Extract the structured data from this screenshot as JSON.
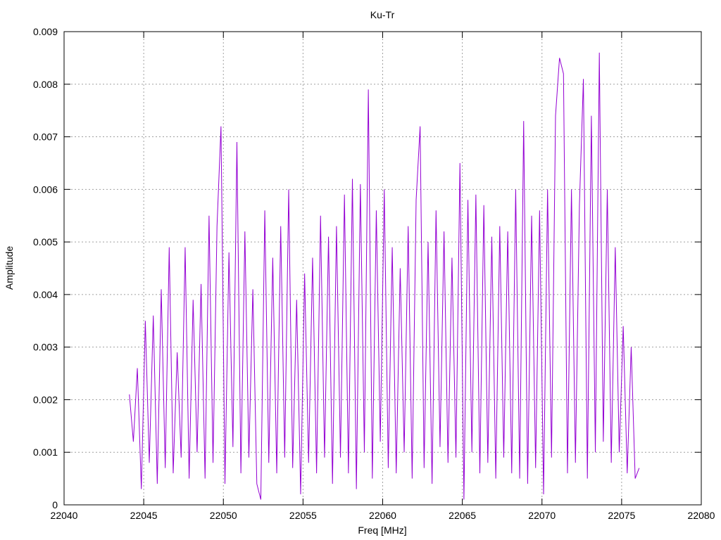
{
  "chart_data": {
    "type": "line",
    "title": "Ku-Tr",
    "x_label": "Freq [MHz]",
    "y_label": "Amplitude",
    "x": [
      22044.1,
      22044.35,
      22044.6,
      22044.85,
      22045.1,
      22045.35,
      22045.6,
      22045.85,
      22046.1,
      22046.35,
      22046.6,
      22046.85,
      22047.1,
      22047.35,
      22047.6,
      22047.85,
      22048.1,
      22048.35,
      22048.6,
      22048.85,
      22049.1,
      22049.35,
      22049.6,
      22049.85,
      22050.1,
      22050.35,
      22050.6,
      22050.85,
      22051.1,
      22051.35,
      22051.6,
      22051.85,
      22052.1,
      22052.35,
      22052.6,
      22052.85,
      22053.1,
      22053.35,
      22053.6,
      22053.85,
      22054.1,
      22054.35,
      22054.6,
      22054.85,
      22055.1,
      22055.35,
      22055.6,
      22055.85,
      22056.1,
      22056.35,
      22056.6,
      22056.85,
      22057.1,
      22057.35,
      22057.6,
      22057.85,
      22058.1,
      22058.35,
      22058.6,
      22058.85,
      22059.1,
      22059.35,
      22059.6,
      22059.85,
      22060.1,
      22060.35,
      22060.6,
      22060.85,
      22061.1,
      22061.35,
      22061.6,
      22061.85,
      22062.1,
      22062.35,
      22062.6,
      22062.85,
      22063.1,
      22063.35,
      22063.6,
      22063.85,
      22064.1,
      22064.35,
      22064.6,
      22064.85,
      22065.1,
      22065.35,
      22065.6,
      22065.85,
      22066.1,
      22066.35,
      22066.6,
      22066.85,
      22067.1,
      22067.35,
      22067.6,
      22067.85,
      22068.1,
      22068.35,
      22068.6,
      22068.85,
      22069.1,
      22069.35,
      22069.6,
      22069.85,
      22070.1,
      22070.35,
      22070.6,
      22070.85,
      22071.1,
      22071.35,
      22071.6,
      22071.85,
      22072.1,
      22072.35,
      22072.6,
      22072.85,
      22073.1,
      22073.35,
      22073.6,
      22073.85,
      22074.1,
      22074.35,
      22074.6,
      22074.85,
      22075.1,
      22075.35,
      22075.6,
      22075.85,
      22076.1
    ],
    "series": [
      {
        "color": "#9400d3",
        "values": [
          0.0021,
          0.0012,
          0.0026,
          0.0003,
          0.0035,
          0.0008,
          0.0036,
          0.0004,
          0.0041,
          0.0007,
          0.0049,
          0.0006,
          0.0029,
          0.0009,
          0.0049,
          0.0005,
          0.0039,
          0.001,
          0.0042,
          0.0005,
          0.0055,
          0.0008,
          0.0053,
          0.0072,
          0.0004,
          0.0048,
          0.0011,
          0.0069,
          0.0006,
          0.0052,
          0.0009,
          0.0041,
          0.0004,
          0.0001,
          0.0056,
          0.0008,
          0.0047,
          0.0006,
          0.0053,
          0.0009,
          0.006,
          0.0007,
          0.0039,
          0.0002,
          0.0044,
          0.0008,
          0.0047,
          0.0006,
          0.0055,
          0.0009,
          0.0051,
          0.0004,
          0.0053,
          0.0009,
          0.0059,
          0.0006,
          0.0062,
          0.0003,
          0.0061,
          0.001,
          0.0079,
          0.0005,
          0.0056,
          0.0012,
          0.006,
          0.0007,
          0.0049,
          0.0006,
          0.0045,
          0.001,
          0.0053,
          0.0005,
          0.0058,
          0.0072,
          0.0007,
          0.005,
          0.0004,
          0.0056,
          0.0011,
          0.0052,
          0.0008,
          0.0047,
          0.0009,
          0.0065,
          0.0001,
          0.0058,
          0.001,
          0.0059,
          0.0006,
          0.0057,
          0.0008,
          0.0051,
          0.0005,
          0.0053,
          0.0009,
          0.0052,
          0.0006,
          0.006,
          0.0005,
          0.0073,
          0.0004,
          0.0055,
          0.0007,
          0.0056,
          0.0002,
          0.006,
          0.0009,
          0.0074,
          0.0085,
          0.0082,
          0.0006,
          0.006,
          0.0008,
          0.0057,
          0.0081,
          0.0005,
          0.0074,
          0.001,
          0.0086,
          0.0012,
          0.006,
          0.0008,
          0.0049,
          0.001,
          0.0034,
          0.0006,
          0.003,
          0.0005,
          0.0007
        ]
      }
    ],
    "xlim": [
      22040,
      22080
    ],
    "xticks": [
      22040,
      22045,
      22050,
      22055,
      22060,
      22065,
      22070,
      22075,
      22080
    ],
    "ylim": [
      0,
      0.009
    ],
    "yticks": [
      0,
      0.001,
      0.002,
      0.003,
      0.004,
      0.005,
      0.006,
      0.007,
      0.008,
      0.009
    ],
    "grid": true
  }
}
